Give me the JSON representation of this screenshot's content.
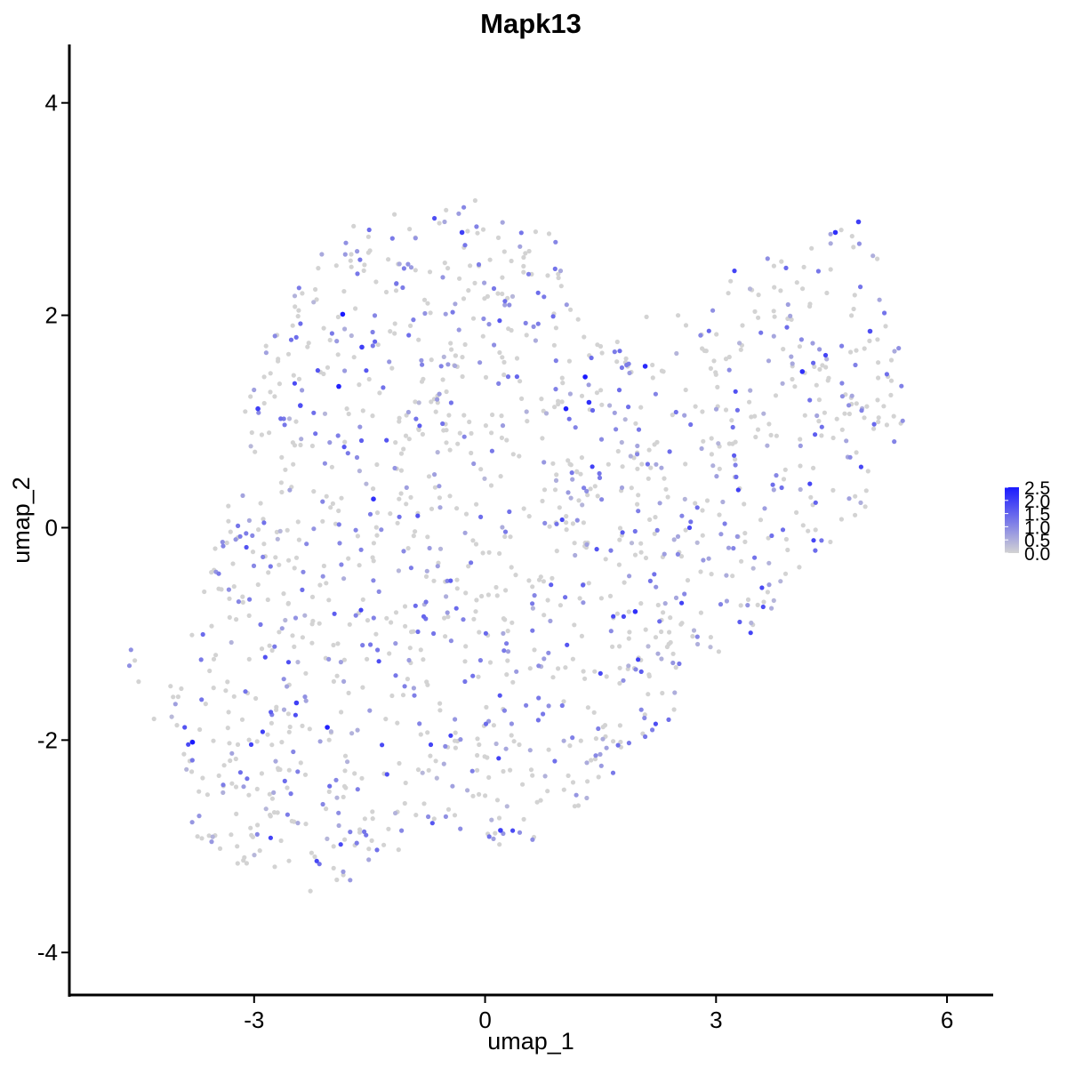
{
  "chart_data": {
    "type": "scatter",
    "title": "Mapk13",
    "xlabel": "umap_1",
    "ylabel": "umap_2",
    "xlim": [
      -5.4,
      6.6
    ],
    "ylim": [
      -4.4,
      4.55
    ],
    "x_ticks": [
      -3,
      0,
      3,
      6
    ],
    "x_tick_labels": [
      "-3",
      "0",
      "3",
      "6"
    ],
    "y_ticks": [
      -4,
      -2,
      0,
      2,
      4
    ],
    "y_tick_labels": [
      "-4",
      "-2",
      "0",
      "2",
      "4"
    ],
    "grid": false,
    "legend_position": "right",
    "color_scale": {
      "low_color": "#d3d3d3",
      "high_color": "#1a1aff",
      "min": 0.0,
      "max": 2.5,
      "tick_values": [
        0.0,
        0.5,
        1.0,
        1.5,
        2.0,
        2.5
      ],
      "tick_labels": [
        "0.0",
        "0.5",
        "1.0",
        "1.5",
        "2.0",
        "2.5"
      ]
    },
    "highlighted_points": [
      {
        "x": -1.85,
        "y": 2.01,
        "value": 2.5
      },
      {
        "x": -1.9,
        "y": 1.33,
        "value": 2.4
      },
      {
        "x": 1.3,
        "y": 1.42,
        "value": 2.5
      },
      {
        "x": 1.05,
        "y": 1.12,
        "value": 2.4
      },
      {
        "x": 1.35,
        "y": 1.18,
        "value": 2.2
      },
      {
        "x": 2.08,
        "y": 1.52,
        "value": 2.3
      },
      {
        "x": 4.12,
        "y": 1.47,
        "value": 2.2
      },
      {
        "x": -1.45,
        "y": 0.27,
        "value": 2.2
      },
      {
        "x": -2.45,
        "y": -1.65,
        "value": 2.0
      },
      {
        "x": -2.05,
        "y": -1.88,
        "value": 2.4
      },
      {
        "x": -3.8,
        "y": -2.02,
        "value": 2.5
      },
      {
        "x": 0.2,
        "y": -2.85,
        "value": 2.0
      },
      {
        "x": 1.95,
        "y": -0.79,
        "value": 2.2
      },
      {
        "x": 4.55,
        "y": 2.78,
        "value": 2.2
      },
      {
        "x": 4.85,
        "y": 2.88,
        "value": 2.0
      },
      {
        "x": -2.95,
        "y": 1.12,
        "value": 2.0
      },
      {
        "x": -1.6,
        "y": 1.7,
        "value": 2.0
      },
      {
        "x": -0.3,
        "y": 2.78,
        "value": 2.0
      },
      {
        "x": 5.0,
        "y": 1.85,
        "value": 1.8
      },
      {
        "x": -2.4,
        "y": 1.15,
        "value": 1.8
      }
    ],
    "cloud": {
      "n_points": 1500,
      "seed": 13,
      "outline_polygon": [
        [
          -4.0,
          -2.15
        ],
        [
          -3.75,
          -2.95
        ],
        [
          -3.3,
          -3.2
        ],
        [
          -2.85,
          -3.15
        ],
        [
          -2.3,
          -3.5
        ],
        [
          -1.85,
          -3.35
        ],
        [
          -1.35,
          -3.2
        ],
        [
          -0.75,
          -2.8
        ],
        [
          0.0,
          -3.0
        ],
        [
          0.6,
          -2.95
        ],
        [
          1.1,
          -2.7
        ],
        [
          1.55,
          -2.4
        ],
        [
          2.3,
          -1.95
        ],
        [
          2.65,
          -1.5
        ],
        [
          3.3,
          -1.15
        ],
        [
          3.9,
          -0.6
        ],
        [
          4.35,
          -0.25
        ],
        [
          4.9,
          0.15
        ],
        [
          5.25,
          0.55
        ],
        [
          5.45,
          1.0
        ],
        [
          5.35,
          1.9
        ],
        [
          5.1,
          2.55
        ],
        [
          4.6,
          3.02
        ],
        [
          4.1,
          2.55
        ],
        [
          3.4,
          2.55
        ],
        [
          2.6,
          2.05
        ],
        [
          2.0,
          1.98
        ],
        [
          1.6,
          1.72
        ],
        [
          1.15,
          2.05
        ],
        [
          0.95,
          2.75
        ],
        [
          0.45,
          2.95
        ],
        [
          -0.2,
          3.1
        ],
        [
          -0.9,
          3.02
        ],
        [
          -1.5,
          2.92
        ],
        [
          -2.1,
          2.72
        ],
        [
          -2.7,
          2.1
        ],
        [
          -3.05,
          1.6
        ],
        [
          -3.2,
          0.9
        ],
        [
          -3.4,
          0.1
        ],
        [
          -3.65,
          -0.45
        ],
        [
          -3.85,
          -1.1
        ],
        [
          -4.15,
          -1.5
        ]
      ],
      "outliers": [
        {
          "x": -4.6,
          "y": -1.15
        },
        {
          "x": -4.55,
          "y": -1.25
        },
        {
          "x": -4.62,
          "y": -1.3
        },
        {
          "x": -4.5,
          "y": -1.45
        },
        {
          "x": -4.3,
          "y": -1.8
        }
      ]
    }
  }
}
